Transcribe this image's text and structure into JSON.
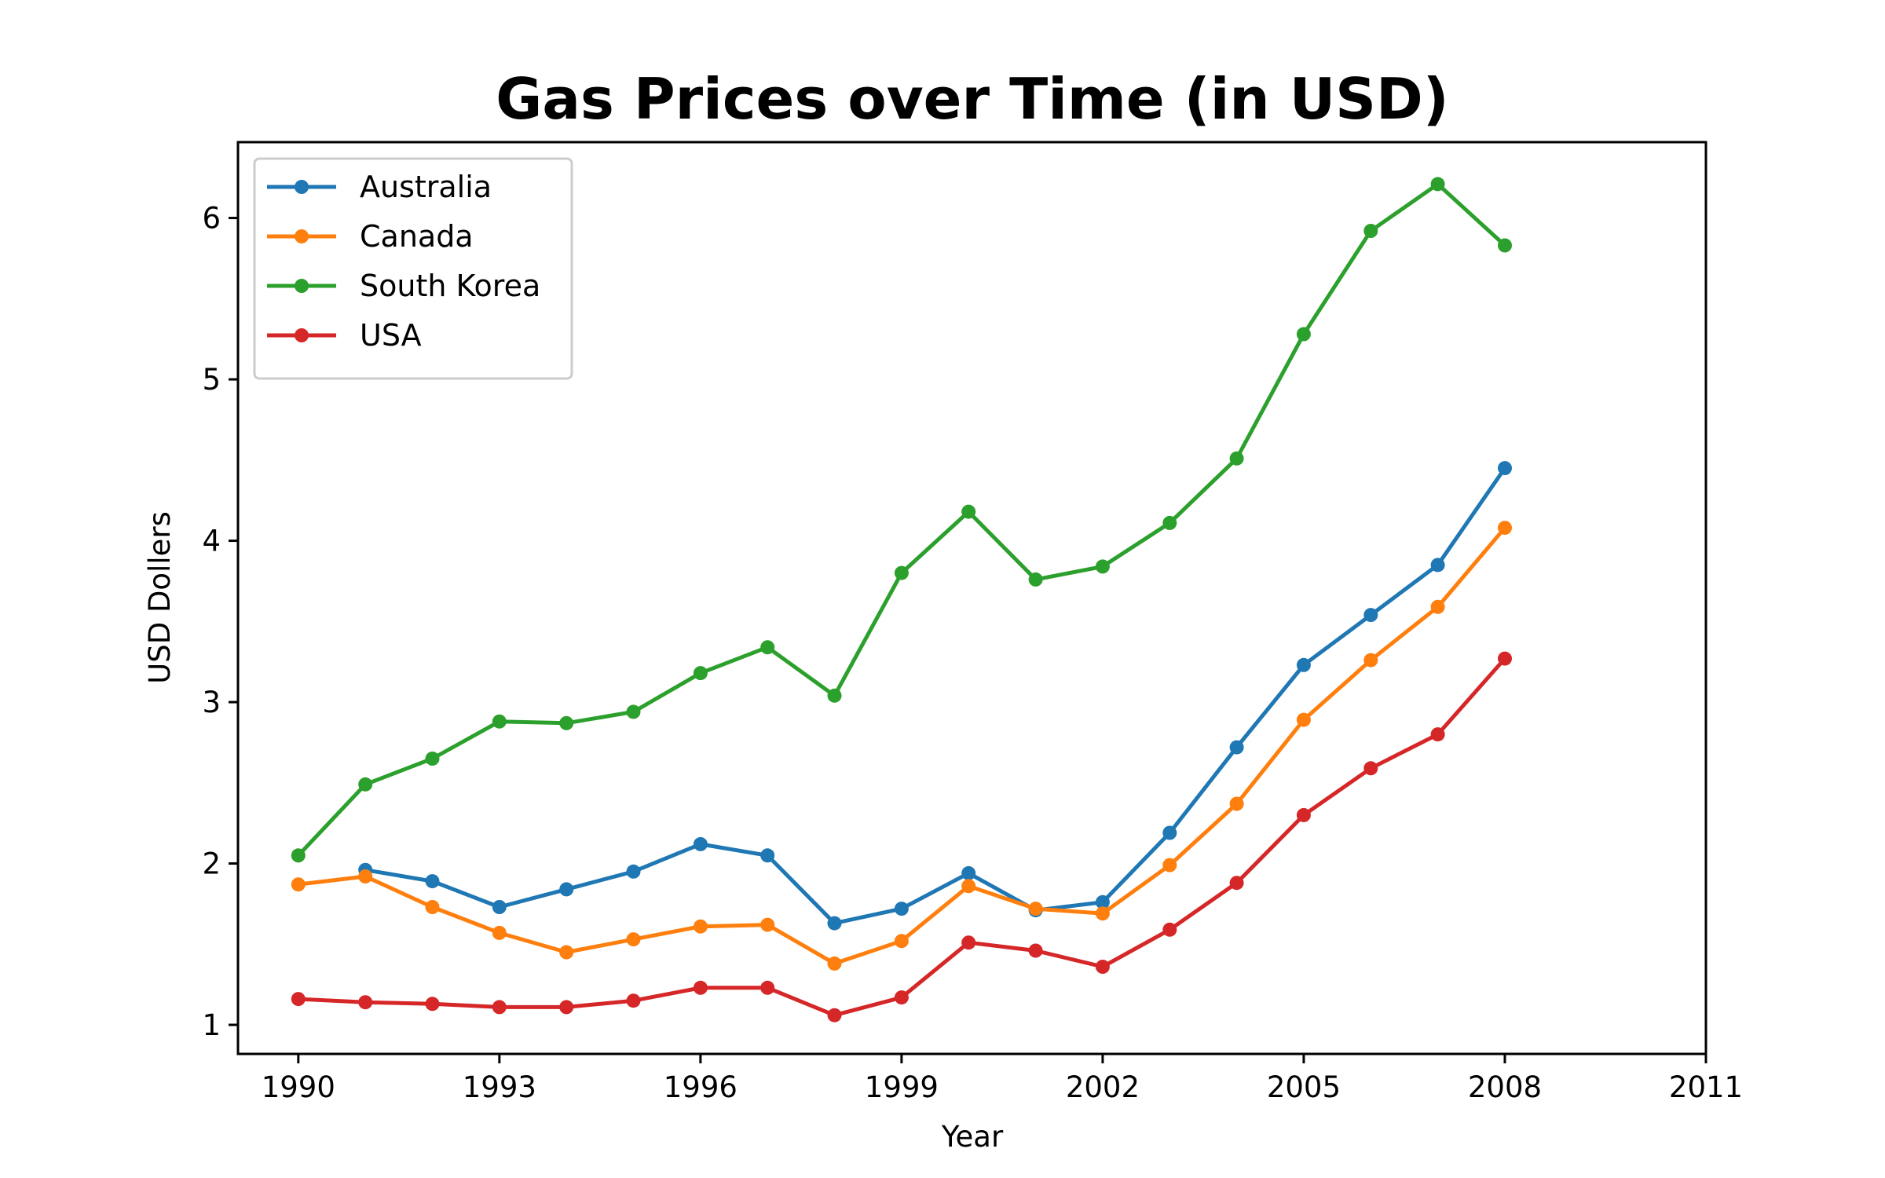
{
  "chart_data": {
    "type": "line",
    "title": "Gas Prices over Time (in USD)",
    "xlabel": "Year",
    "ylabel": "USD Dollers",
    "xlim": [
      1989.1,
      2011
    ],
    "ylim": [
      0.82,
      6.47
    ],
    "xticks": [
      1990,
      1993,
      1996,
      1999,
      2002,
      2005,
      2008,
      2011
    ],
    "yticks": [
      1,
      2,
      3,
      4,
      5,
      6
    ],
    "grid": false,
    "legend_position": "upper-left",
    "series": [
      {
        "name": "Australia",
        "color": "#1f77b4",
        "x": [
          1991,
          1992,
          1993,
          1994,
          1995,
          1996,
          1997,
          1998,
          1999,
          2000,
          2001,
          2002,
          2003,
          2004,
          2005,
          2006,
          2007,
          2008
        ],
        "values": [
          1.96,
          1.89,
          1.73,
          1.84,
          1.95,
          2.12,
          2.05,
          1.63,
          1.72,
          1.94,
          1.71,
          1.76,
          2.19,
          2.72,
          3.23,
          3.54,
          3.85,
          4.45
        ]
      },
      {
        "name": "Canada",
        "color": "#ff7f0e",
        "x": [
          1990,
          1991,
          1992,
          1993,
          1994,
          1995,
          1996,
          1997,
          1998,
          1999,
          2000,
          2001,
          2002,
          2003,
          2004,
          2005,
          2006,
          2007,
          2008
        ],
        "values": [
          1.87,
          1.92,
          1.73,
          1.57,
          1.45,
          1.53,
          1.61,
          1.62,
          1.38,
          1.52,
          1.86,
          1.72,
          1.69,
          1.99,
          2.37,
          2.89,
          3.26,
          3.59,
          4.08
        ]
      },
      {
        "name": "South Korea",
        "color": "#2ca02c",
        "x": [
          1990,
          1991,
          1992,
          1993,
          1994,
          1995,
          1996,
          1997,
          1998,
          1999,
          2000,
          2001,
          2002,
          2003,
          2004,
          2005,
          2006,
          2007,
          2008
        ],
        "values": [
          2.05,
          2.49,
          2.65,
          2.88,
          2.87,
          2.94,
          3.18,
          3.34,
          3.04,
          3.8,
          4.18,
          3.76,
          3.84,
          4.11,
          4.51,
          5.28,
          5.92,
          6.21,
          5.83
        ]
      },
      {
        "name": "USA",
        "color": "#d62728",
        "x": [
          1990,
          1991,
          1992,
          1993,
          1994,
          1995,
          1996,
          1997,
          1998,
          1999,
          2000,
          2001,
          2002,
          2003,
          2004,
          2005,
          2006,
          2007,
          2008
        ],
        "values": [
          1.16,
          1.14,
          1.13,
          1.11,
          1.11,
          1.15,
          1.23,
          1.23,
          1.06,
          1.17,
          1.51,
          1.46,
          1.36,
          1.59,
          1.88,
          2.3,
          2.59,
          2.8,
          3.27
        ]
      }
    ]
  }
}
